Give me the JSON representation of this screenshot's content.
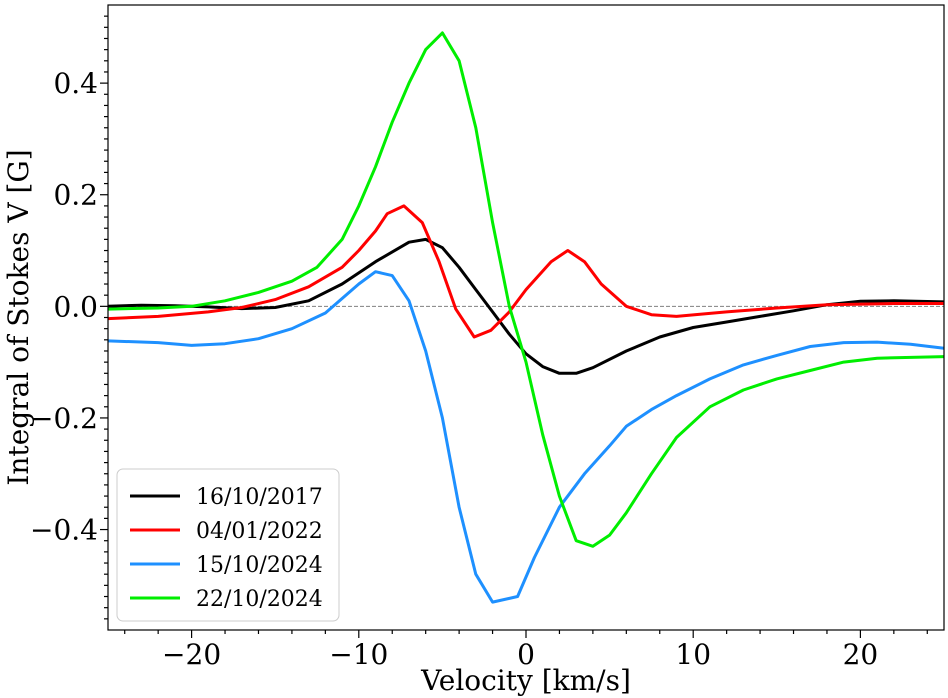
{
  "chart_data": {
    "type": "line",
    "title": "",
    "xlabel": "Velocity [km/s]",
    "ylabel": "Integral of Stokes V [G]",
    "xlim": [
      -25,
      25
    ],
    "ylim": [
      -0.58,
      0.54
    ],
    "xticks": [
      -20,
      -10,
      0,
      10,
      20
    ],
    "yticks": [
      -0.4,
      -0.2,
      0.0,
      0.2,
      0.4
    ],
    "xtick_labels": [
      "−20",
      "−10",
      "0",
      "10",
      "20"
    ],
    "ytick_labels": [
      "−0.4",
      "−0.2",
      "0.0",
      "0.2",
      "0.4"
    ],
    "zero_line": true,
    "grid": false,
    "legend_position": "lower-left",
    "series": [
      {
        "name": "16/10/2017",
        "color": "#000000",
        "points": [
          [
            -25,
            0.0
          ],
          [
            -23,
            0.002
          ],
          [
            -21,
            0.001
          ],
          [
            -19,
            -0.001
          ],
          [
            -17,
            -0.004
          ],
          [
            -15,
            -0.002
          ],
          [
            -13,
            0.01
          ],
          [
            -11,
            0.04
          ],
          [
            -9,
            0.08
          ],
          [
            -7,
            0.115
          ],
          [
            -6,
            0.12
          ],
          [
            -5,
            0.105
          ],
          [
            -4,
            0.07
          ],
          [
            -3,
            0.03
          ],
          [
            -2,
            -0.01
          ],
          [
            -1,
            -0.05
          ],
          [
            0,
            -0.085
          ],
          [
            1,
            -0.108
          ],
          [
            2,
            -0.12
          ],
          [
            3,
            -0.12
          ],
          [
            4,
            -0.11
          ],
          [
            6,
            -0.08
          ],
          [
            8,
            -0.055
          ],
          [
            10,
            -0.038
          ],
          [
            12,
            -0.028
          ],
          [
            14,
            -0.018
          ],
          [
            16,
            -0.008
          ],
          [
            18,
            0.003
          ],
          [
            20,
            0.009
          ],
          [
            22,
            0.01
          ],
          [
            25,
            0.008
          ]
        ]
      },
      {
        "name": "04/01/2022",
        "color": "#ff0000",
        "points": [
          [
            -25,
            -0.022
          ],
          [
            -22,
            -0.018
          ],
          [
            -19,
            -0.01
          ],
          [
            -17,
            -0.002
          ],
          [
            -15,
            0.012
          ],
          [
            -13,
            0.035
          ],
          [
            -11,
            0.07
          ],
          [
            -10,
            0.1
          ],
          [
            -9,
            0.135
          ],
          [
            -8.3,
            0.166
          ],
          [
            -7.3,
            0.18
          ],
          [
            -6.2,
            0.15
          ],
          [
            -5.2,
            0.08
          ],
          [
            -4.2,
            -0.005
          ],
          [
            -3.1,
            -0.055
          ],
          [
            -2.1,
            -0.043
          ],
          [
            -1,
            -0.01
          ],
          [
            0,
            0.03
          ],
          [
            1.5,
            0.08
          ],
          [
            2.5,
            0.1
          ],
          [
            3.5,
            0.08
          ],
          [
            4.5,
            0.04
          ],
          [
            6,
            0.0
          ],
          [
            7.5,
            -0.015
          ],
          [
            9,
            -0.018
          ],
          [
            12,
            -0.01
          ],
          [
            15,
            -0.003
          ],
          [
            18,
            0.003
          ],
          [
            22,
            0.005
          ],
          [
            25,
            0.005
          ]
        ]
      },
      {
        "name": "15/10/2024",
        "color": "#1e90ff",
        "points": [
          [
            -25,
            -0.062
          ],
          [
            -22,
            -0.065
          ],
          [
            -20,
            -0.07
          ],
          [
            -18,
            -0.067
          ],
          [
            -16,
            -0.058
          ],
          [
            -14,
            -0.04
          ],
          [
            -12,
            -0.012
          ],
          [
            -10,
            0.04
          ],
          [
            -9,
            0.062
          ],
          [
            -8,
            0.055
          ],
          [
            -7,
            0.01
          ],
          [
            -6,
            -0.08
          ],
          [
            -5,
            -0.2
          ],
          [
            -4,
            -0.36
          ],
          [
            -3,
            -0.48
          ],
          [
            -2,
            -0.53
          ],
          [
            -0.5,
            -0.52
          ],
          [
            0.5,
            -0.45
          ],
          [
            2,
            -0.36
          ],
          [
            3.5,
            -0.3
          ],
          [
            5,
            -0.25
          ],
          [
            6,
            -0.215
          ],
          [
            7.5,
            -0.185
          ],
          [
            9,
            -0.16
          ],
          [
            11,
            -0.13
          ],
          [
            13,
            -0.105
          ],
          [
            15,
            -0.088
          ],
          [
            17,
            -0.072
          ],
          [
            19,
            -0.065
          ],
          [
            21,
            -0.064
          ],
          [
            23,
            -0.068
          ],
          [
            25,
            -0.075
          ]
        ]
      },
      {
        "name": "22/10/2024",
        "color": "#00ee00",
        "points": [
          [
            -25,
            -0.005
          ],
          [
            -22,
            -0.003
          ],
          [
            -20,
            0.0
          ],
          [
            -18,
            0.01
          ],
          [
            -16,
            0.025
          ],
          [
            -14,
            0.045
          ],
          [
            -12.5,
            0.07
          ],
          [
            -11,
            0.12
          ],
          [
            -10,
            0.18
          ],
          [
            -9,
            0.25
          ],
          [
            -8,
            0.33
          ],
          [
            -7,
            0.4
          ],
          [
            -6,
            0.46
          ],
          [
            -5,
            0.49
          ],
          [
            -4,
            0.44
          ],
          [
            -3,
            0.32
          ],
          [
            -2,
            0.15
          ],
          [
            -1,
            0.0
          ],
          [
            0,
            -0.1
          ],
          [
            1,
            -0.23
          ],
          [
            2,
            -0.34
          ],
          [
            3,
            -0.42
          ],
          [
            4,
            -0.43
          ],
          [
            5,
            -0.41
          ],
          [
            6,
            -0.37
          ],
          [
            7.5,
            -0.3
          ],
          [
            9,
            -0.235
          ],
          [
            11,
            -0.18
          ],
          [
            13,
            -0.15
          ],
          [
            15,
            -0.13
          ],
          [
            17,
            -0.115
          ],
          [
            19,
            -0.1
          ],
          [
            21,
            -0.093
          ],
          [
            25,
            -0.09
          ]
        ]
      }
    ]
  }
}
